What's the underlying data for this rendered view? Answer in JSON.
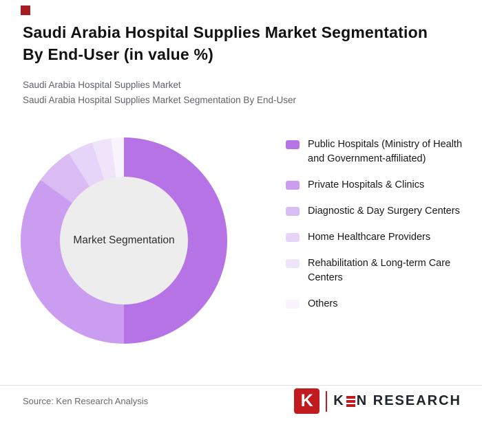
{
  "header": {
    "title_lines": [
      "Saudi Arabia Hospital Supplies Market Segmentation",
      "By End-User (in value %)"
    ],
    "subtitle_lines": [
      "Saudi Arabia Hospital Supplies Market",
      "Saudi Arabia Hospital Supplies Market Segmentation By End-User"
    ]
  },
  "chart_data": {
    "type": "pie",
    "donut": true,
    "title": "Saudi Arabia Hospital Supplies Market Segmentation By End-User (in value %)",
    "center_label": "Market Segmentation",
    "legend_position": "right",
    "start_angle_deg": 0,
    "hole_color": "#ededed",
    "segments": [
      {
        "label": "Public Hospitals (Ministry of Health and Government-affiliated)",
        "value": 50,
        "color": "#b673e6"
      },
      {
        "label": "Private Hospitals & Clinics",
        "value": 35,
        "color": "#ca9df0"
      },
      {
        "label": "Diagnostic & Day Surgery Centers",
        "value": 6,
        "color": "#dabcf5"
      },
      {
        "label": "Home Healthcare Providers",
        "value": 4,
        "color": "#e7d4f9"
      },
      {
        "label": "Rehabilitation & Long-term Care Centers",
        "value": 3,
        "color": "#f0e4fb"
      },
      {
        "label": "Others",
        "value": 2,
        "color": "#f9f3fe"
      }
    ]
  },
  "footer": {
    "source": "Source: Ken Research Analysis",
    "logo": {
      "icon_letter": "K",
      "wordmark_k": "K",
      "wordmark_rest": "N RESEARCH"
    }
  },
  "colors": {
    "accent_red": "#a31d21",
    "logo_red": "#c11b20"
  }
}
